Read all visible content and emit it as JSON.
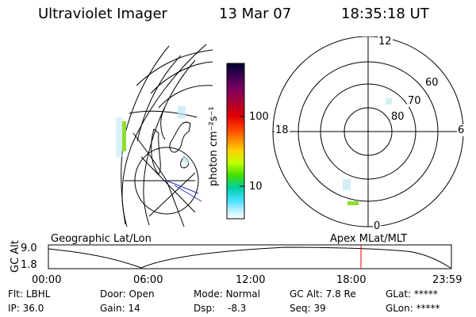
{
  "header": {
    "title": "Ultraviolet Imager",
    "date": "13 Mar 07",
    "time": "18:35:18 UT"
  },
  "colorbar": {
    "label": "photon cm⁻²s⁻¹",
    "ticks": [
      "100",
      "10"
    ],
    "colors": [
      "#000030",
      "#3a0050",
      "#7a0060",
      "#b00030",
      "#e00000",
      "#ff4000",
      "#ff9000",
      "#ffd000",
      "#c0ff00",
      "#40e000",
      "#00d0a0",
      "#40e0ff",
      "#c0f0ff",
      "#ffffff"
    ]
  },
  "polar_plot": {
    "mlt_labels": {
      "top": "12",
      "left": "18",
      "right": "6",
      "bottom": "0"
    },
    "lat_labels": [
      "60",
      "70",
      "80"
    ]
  },
  "timeline": {
    "y_label": "GC Alt",
    "y_ticks": [
      "9.0",
      "1.8"
    ],
    "left_title": "Geographic Lat/Lon",
    "right_title": "Apex MLat/MLT",
    "x_ticks": [
      "00:00",
      "06:00",
      "12:00",
      "18:00",
      "23:59"
    ]
  },
  "info": {
    "flt_label": "Flt:",
    "flt_value": "LBHL",
    "ip_label": "IP:",
    "ip_value": "36.0",
    "door_label": "Door:",
    "door_value": "Open",
    "gain_label": "Gain:",
    "gain_value": "14",
    "mode_label": "Mode:",
    "mode_value": "Normal",
    "dsp_label": "Dsp:",
    "dsp_value": "-8.3",
    "gcalt_label": "GC Alt:",
    "gcalt_value": "7.8 Re",
    "seq_label": "Seq:",
    "seq_value": "39",
    "glat_label": "GLat:",
    "glat_value": "*****",
    "glon_label": "GLon:",
    "glon_value": "*****"
  }
}
